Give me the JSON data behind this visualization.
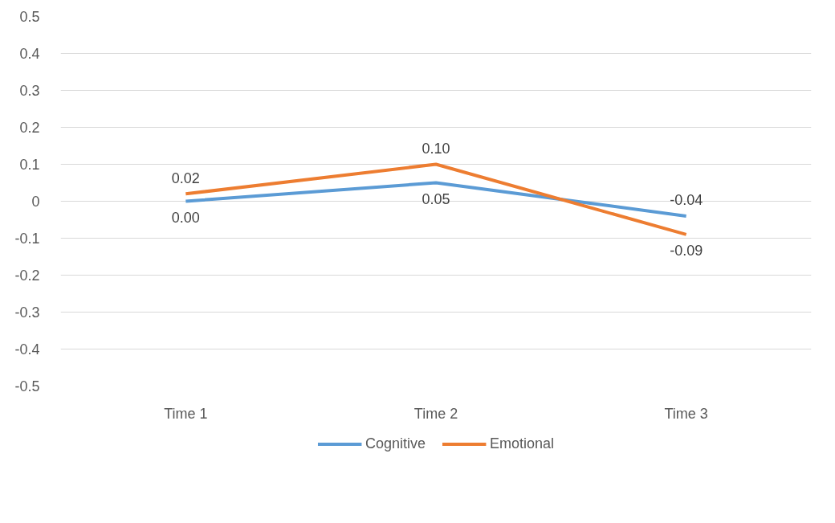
{
  "chart_data": {
    "type": "line",
    "categories": [
      "Time 1",
      "Time 2",
      "Time 3"
    ],
    "series": [
      {
        "name": "Cognitive",
        "color": "#5b9bd5",
        "values": [
          0.0,
          0.05,
          -0.04
        ],
        "value_labels": [
          "0.00",
          "0.05",
          "-0.04"
        ]
      },
      {
        "name": "Emotional",
        "color": "#ed7d31",
        "values": [
          0.02,
          0.1,
          -0.09
        ],
        "value_labels": [
          "0.02",
          "0.10",
          "-0.09"
        ]
      }
    ],
    "ylim": [
      -0.5,
      0.5
    ],
    "yticks": [
      -0.5,
      -0.4,
      -0.3,
      -0.2,
      -0.1,
      0,
      0.1,
      0.2,
      0.3,
      0.4,
      0.5
    ],
    "grid": "y",
    "legend": "bottom",
    "marker": "none",
    "line_style": "solid"
  }
}
